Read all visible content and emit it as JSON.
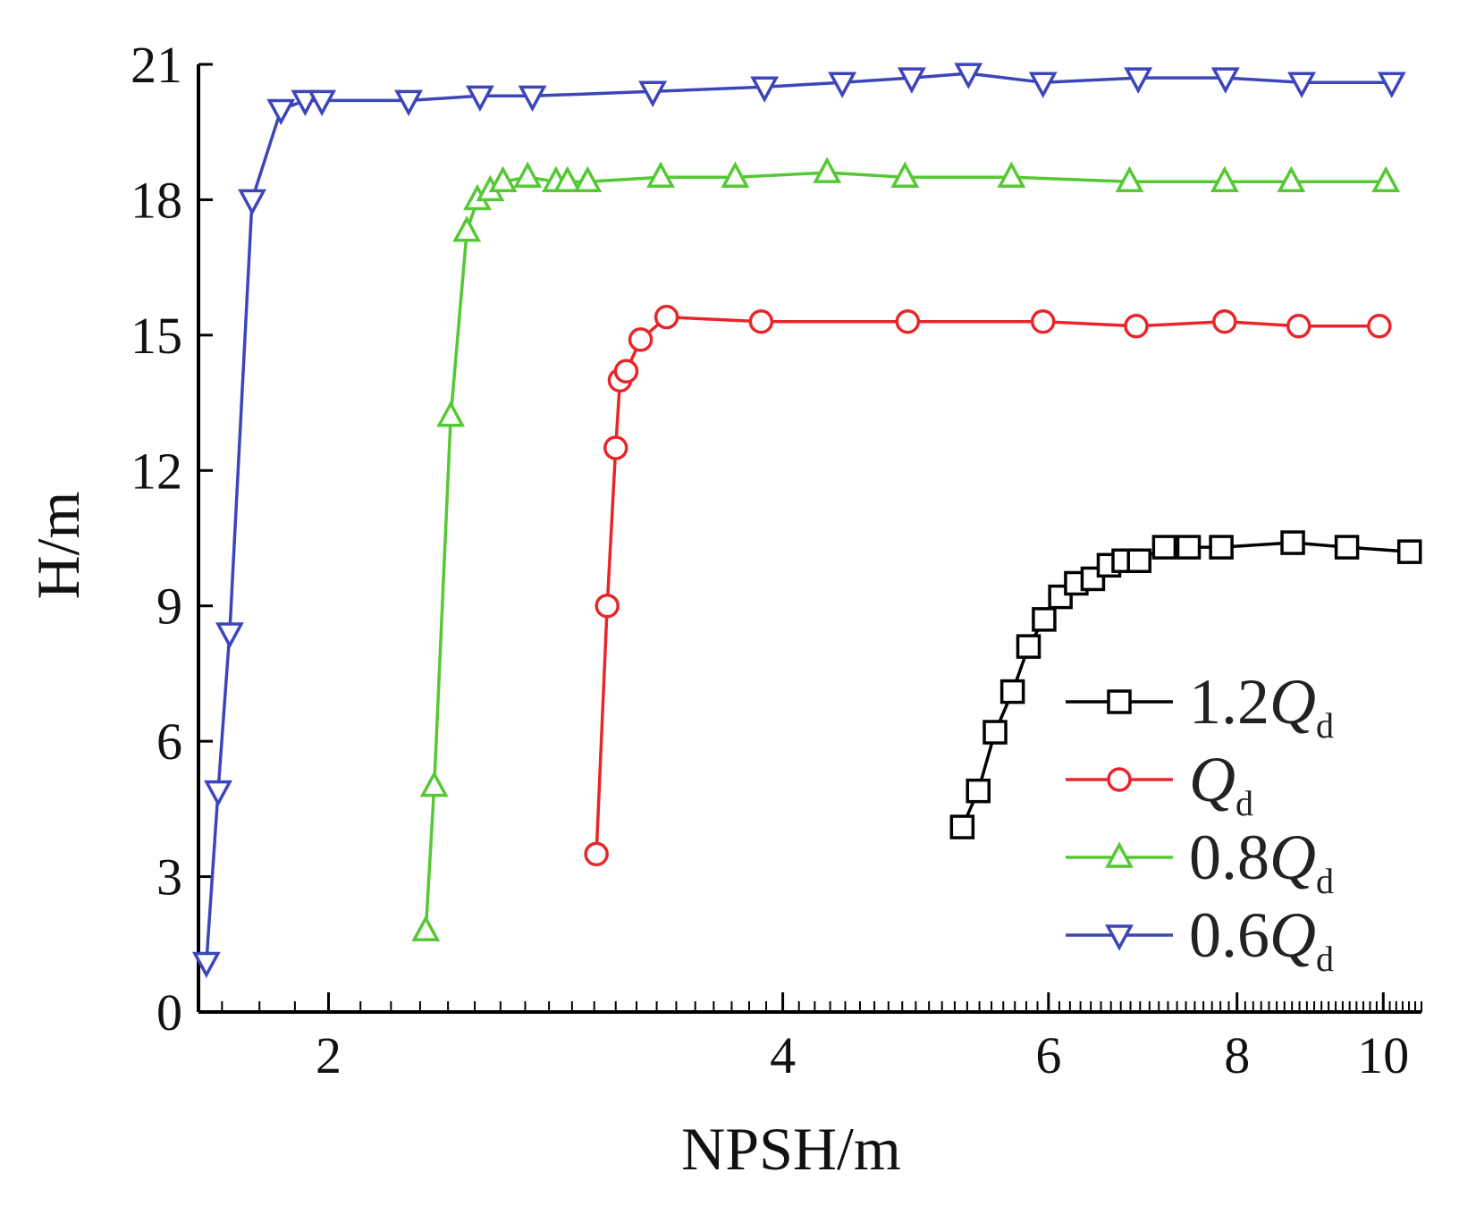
{
  "chart_data": {
    "type": "line",
    "xlabel": "NPSH/m",
    "ylabel": "H/m",
    "xscale": "log",
    "xlim": [
      1.64,
      10.6
    ],
    "ylim": [
      0,
      21
    ],
    "x_ticks": [
      2,
      4,
      6,
      8,
      10
    ],
    "y_ticks": [
      0,
      3,
      6,
      9,
      12,
      15,
      18,
      21
    ],
    "grid": false,
    "legend_position": "lower-right",
    "series": [
      {
        "name": "1.2Q",
        "name_subscript": "d",
        "color": "#000000",
        "marker": "square",
        "x": [
          5.26,
          5.39,
          5.53,
          5.68,
          5.82,
          5.96,
          6.11,
          6.26,
          6.42,
          6.58,
          6.73,
          6.89,
          7.16,
          7.43,
          7.81,
          8.71,
          9.46,
          10.41
        ],
        "y": [
          4.1,
          4.9,
          6.2,
          7.1,
          8.1,
          8.7,
          9.2,
          9.5,
          9.6,
          9.9,
          10.0,
          10.0,
          10.3,
          10.3,
          10.3,
          10.4,
          10.3,
          10.2
        ]
      },
      {
        "name": "Q",
        "name_subscript": "d",
        "color": "#e8262a",
        "marker": "circle",
        "x": [
          3.01,
          3.06,
          3.1,
          3.12,
          3.15,
          3.22,
          3.35,
          3.87,
          4.84,
          5.95,
          6.86,
          7.85,
          8.79,
          9.94
        ],
        "y": [
          3.5,
          9.0,
          12.5,
          14.0,
          14.2,
          14.9,
          15.4,
          15.3,
          15.3,
          15.3,
          15.2,
          15.3,
          15.2,
          15.2
        ]
      },
      {
        "name": "0.8Q",
        "name_subscript": "d",
        "color": "#55c833",
        "marker": "triangle-up",
        "x": [
          2.32,
          2.35,
          2.41,
          2.47,
          2.51,
          2.56,
          2.61,
          2.71,
          2.83,
          2.88,
          2.97,
          3.32,
          3.72,
          4.28,
          4.82,
          5.67,
          6.79,
          7.85,
          8.69,
          10.04
        ],
        "y": [
          1.8,
          5.0,
          13.2,
          17.3,
          18.0,
          18.2,
          18.4,
          18.5,
          18.4,
          18.4,
          18.4,
          18.5,
          18.5,
          18.6,
          18.5,
          18.5,
          18.4,
          18.4,
          18.4,
          18.4
        ]
      },
      {
        "name": "0.6Q",
        "name_subscript": "d",
        "color": "#3c45b9",
        "marker": "triangle-down",
        "x": [
          1.66,
          1.69,
          1.72,
          1.78,
          1.86,
          1.93,
          1.98,
          2.26,
          2.52,
          2.73,
          3.28,
          3.89,
          4.38,
          4.87,
          5.31,
          5.95,
          6.88,
          7.86,
          8.83,
          10.13
        ],
        "y": [
          1.1,
          4.9,
          8.4,
          18.0,
          20.0,
          20.2,
          20.2,
          20.2,
          20.3,
          20.3,
          20.4,
          20.5,
          20.6,
          20.7,
          20.8,
          20.6,
          20.7,
          20.7,
          20.6,
          20.6
        ]
      }
    ]
  }
}
